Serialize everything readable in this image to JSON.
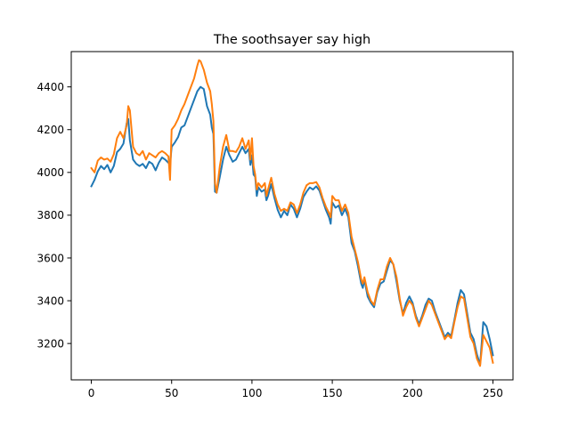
{
  "chart_data": {
    "type": "line",
    "title": "The soothsayer say high",
    "xlabel": "",
    "ylabel": "",
    "xlim": [
      -12.5,
      262.5
    ],
    "ylim": [
      3030,
      4565
    ],
    "xticks": [
      0,
      50,
      100,
      150,
      200,
      250
    ],
    "yticks": [
      3200,
      3400,
      3600,
      3800,
      4000,
      4200,
      4400
    ],
    "grid": false,
    "legend": "none",
    "series": [
      {
        "color": "#1f77b4",
        "points": [
          [
            0,
            3935
          ],
          [
            2,
            3965
          ],
          [
            4,
            4005
          ],
          [
            6,
            4030
          ],
          [
            8,
            4015
          ],
          [
            10,
            4035
          ],
          [
            12,
            4000
          ],
          [
            14,
            4030
          ],
          [
            16,
            4095
          ],
          [
            18,
            4110
          ],
          [
            20,
            4135
          ],
          [
            22,
            4230
          ],
          [
            23,
            4250
          ],
          [
            24,
            4150
          ],
          [
            26,
            4060
          ],
          [
            28,
            4040
          ],
          [
            30,
            4030
          ],
          [
            32,
            4040
          ],
          [
            34,
            4020
          ],
          [
            36,
            4050
          ],
          [
            38,
            4040
          ],
          [
            40,
            4010
          ],
          [
            42,
            4045
          ],
          [
            44,
            4070
          ],
          [
            46,
            4060
          ],
          [
            48,
            4045
          ],
          [
            49,
            4035
          ],
          [
            50,
            4120
          ],
          [
            52,
            4140
          ],
          [
            54,
            4165
          ],
          [
            56,
            4210
          ],
          [
            58,
            4220
          ],
          [
            60,
            4260
          ],
          [
            62,
            4300
          ],
          [
            64,
            4340
          ],
          [
            66,
            4380
          ],
          [
            68,
            4400
          ],
          [
            70,
            4390
          ],
          [
            72,
            4310
          ],
          [
            74,
            4270
          ],
          [
            75,
            4210
          ],
          [
            76,
            4180
          ],
          [
            77,
            3910
          ],
          [
            78,
            3905
          ],
          [
            80,
            3980
          ],
          [
            82,
            4060
          ],
          [
            84,
            4120
          ],
          [
            86,
            4080
          ],
          [
            88,
            4050
          ],
          [
            90,
            4060
          ],
          [
            92,
            4090
          ],
          [
            94,
            4120
          ],
          [
            96,
            4090
          ],
          [
            98,
            4110
          ],
          [
            99,
            4035
          ],
          [
            100,
            4080
          ],
          [
            101,
            3990
          ],
          [
            102,
            3980
          ],
          [
            103,
            3890
          ],
          [
            104,
            3930
          ],
          [
            106,
            3910
          ],
          [
            108,
            3920
          ],
          [
            109,
            3870
          ],
          [
            110,
            3890
          ],
          [
            112,
            3945
          ],
          [
            114,
            3880
          ],
          [
            116,
            3825
          ],
          [
            118,
            3790
          ],
          [
            120,
            3820
          ],
          [
            122,
            3800
          ],
          [
            124,
            3850
          ],
          [
            126,
            3830
          ],
          [
            128,
            3790
          ],
          [
            130,
            3830
          ],
          [
            132,
            3885
          ],
          [
            134,
            3910
          ],
          [
            136,
            3930
          ],
          [
            138,
            3920
          ],
          [
            140,
            3935
          ],
          [
            142,
            3915
          ],
          [
            144,
            3870
          ],
          [
            146,
            3825
          ],
          [
            148,
            3790
          ],
          [
            149,
            3760
          ],
          [
            150,
            3860
          ],
          [
            152,
            3835
          ],
          [
            154,
            3845
          ],
          [
            156,
            3800
          ],
          [
            158,
            3830
          ],
          [
            160,
            3790
          ],
          [
            162,
            3670
          ],
          [
            164,
            3630
          ],
          [
            166,
            3560
          ],
          [
            168,
            3480
          ],
          [
            169,
            3460
          ],
          [
            170,
            3500
          ],
          [
            172,
            3420
          ],
          [
            174,
            3390
          ],
          [
            176,
            3370
          ],
          [
            178,
            3440
          ],
          [
            180,
            3480
          ],
          [
            182,
            3490
          ],
          [
            184,
            3540
          ],
          [
            186,
            3590
          ],
          [
            188,
            3570
          ],
          [
            190,
            3490
          ],
          [
            192,
            3400
          ],
          [
            194,
            3340
          ],
          [
            196,
            3390
          ],
          [
            198,
            3420
          ],
          [
            200,
            3390
          ],
          [
            202,
            3330
          ],
          [
            204,
            3290
          ],
          [
            206,
            3330
          ],
          [
            208,
            3380
          ],
          [
            210,
            3410
          ],
          [
            212,
            3400
          ],
          [
            214,
            3350
          ],
          [
            216,
            3310
          ],
          [
            218,
            3270
          ],
          [
            220,
            3230
          ],
          [
            222,
            3250
          ],
          [
            224,
            3235
          ],
          [
            226,
            3310
          ],
          [
            228,
            3390
          ],
          [
            230,
            3450
          ],
          [
            232,
            3430
          ],
          [
            234,
            3340
          ],
          [
            236,
            3250
          ],
          [
            238,
            3220
          ],
          [
            240,
            3150
          ],
          [
            242,
            3100
          ],
          [
            244,
            3300
          ],
          [
            246,
            3280
          ],
          [
            248,
            3220
          ],
          [
            250,
            3145
          ]
        ]
      },
      {
        "color": "#ff7f0e",
        "points": [
          [
            0,
            4020
          ],
          [
            2,
            4000
          ],
          [
            4,
            4055
          ],
          [
            6,
            4070
          ],
          [
            8,
            4060
          ],
          [
            10,
            4065
          ],
          [
            12,
            4050
          ],
          [
            14,
            4085
          ],
          [
            16,
            4160
          ],
          [
            18,
            4190
          ],
          [
            20,
            4160
          ],
          [
            22,
            4220
          ],
          [
            23,
            4310
          ],
          [
            24,
            4290
          ],
          [
            26,
            4120
          ],
          [
            28,
            4090
          ],
          [
            30,
            4080
          ],
          [
            32,
            4100
          ],
          [
            34,
            4060
          ],
          [
            36,
            4090
          ],
          [
            38,
            4080
          ],
          [
            40,
            4070
          ],
          [
            42,
            4090
          ],
          [
            44,
            4100
          ],
          [
            46,
            4090
          ],
          [
            48,
            4075
          ],
          [
            49,
            3965
          ],
          [
            50,
            4200
          ],
          [
            52,
            4220
          ],
          [
            54,
            4250
          ],
          [
            56,
            4290
          ],
          [
            58,
            4320
          ],
          [
            60,
            4360
          ],
          [
            62,
            4400
          ],
          [
            64,
            4440
          ],
          [
            66,
            4500
          ],
          [
            67,
            4525
          ],
          [
            68,
            4520
          ],
          [
            70,
            4480
          ],
          [
            72,
            4420
          ],
          [
            74,
            4380
          ],
          [
            75,
            4320
          ],
          [
            76,
            4240
          ],
          [
            77,
            3950
          ],
          [
            78,
            3905
          ],
          [
            80,
            4030
          ],
          [
            82,
            4120
          ],
          [
            84,
            4175
          ],
          [
            86,
            4100
          ],
          [
            88,
            4100
          ],
          [
            90,
            4095
          ],
          [
            92,
            4120
          ],
          [
            94,
            4160
          ],
          [
            96,
            4110
          ],
          [
            98,
            4150
          ],
          [
            99,
            4060
          ],
          [
            100,
            4160
          ],
          [
            101,
            4030
          ],
          [
            102,
            3990
          ],
          [
            103,
            3920
          ],
          [
            104,
            3950
          ],
          [
            106,
            3930
          ],
          [
            108,
            3950
          ],
          [
            109,
            3890
          ],
          [
            110,
            3920
          ],
          [
            112,
            3975
          ],
          [
            114,
            3900
          ],
          [
            116,
            3850
          ],
          [
            118,
            3820
          ],
          [
            120,
            3830
          ],
          [
            122,
            3820
          ],
          [
            124,
            3860
          ],
          [
            126,
            3850
          ],
          [
            128,
            3810
          ],
          [
            130,
            3850
          ],
          [
            132,
            3905
          ],
          [
            134,
            3940
          ],
          [
            136,
            3950
          ],
          [
            138,
            3950
          ],
          [
            140,
            3955
          ],
          [
            142,
            3930
          ],
          [
            144,
            3880
          ],
          [
            146,
            3840
          ],
          [
            148,
            3810
          ],
          [
            149,
            3790
          ],
          [
            150,
            3890
          ],
          [
            152,
            3870
          ],
          [
            154,
            3870
          ],
          [
            156,
            3820
          ],
          [
            158,
            3850
          ],
          [
            160,
            3810
          ],
          [
            162,
            3700
          ],
          [
            164,
            3640
          ],
          [
            166,
            3580
          ],
          [
            168,
            3500
          ],
          [
            169,
            3480
          ],
          [
            170,
            3510
          ],
          [
            172,
            3440
          ],
          [
            174,
            3400
          ],
          [
            176,
            3380
          ],
          [
            178,
            3450
          ],
          [
            180,
            3500
          ],
          [
            182,
            3500
          ],
          [
            184,
            3560
          ],
          [
            186,
            3600
          ],
          [
            188,
            3570
          ],
          [
            190,
            3510
          ],
          [
            192,
            3410
          ],
          [
            194,
            3330
          ],
          [
            196,
            3370
          ],
          [
            198,
            3400
          ],
          [
            200,
            3380
          ],
          [
            202,
            3320
          ],
          [
            204,
            3280
          ],
          [
            206,
            3320
          ],
          [
            208,
            3360
          ],
          [
            210,
            3400
          ],
          [
            212,
            3380
          ],
          [
            214,
            3340
          ],
          [
            216,
            3300
          ],
          [
            218,
            3260
          ],
          [
            220,
            3220
          ],
          [
            222,
            3240
          ],
          [
            224,
            3225
          ],
          [
            226,
            3300
          ],
          [
            228,
            3370
          ],
          [
            230,
            3420
          ],
          [
            232,
            3410
          ],
          [
            234,
            3320
          ],
          [
            236,
            3230
          ],
          [
            238,
            3200
          ],
          [
            240,
            3130
          ],
          [
            242,
            3095
          ],
          [
            244,
            3240
          ],
          [
            246,
            3210
          ],
          [
            248,
            3180
          ],
          [
            250,
            3110
          ]
        ]
      }
    ]
  }
}
